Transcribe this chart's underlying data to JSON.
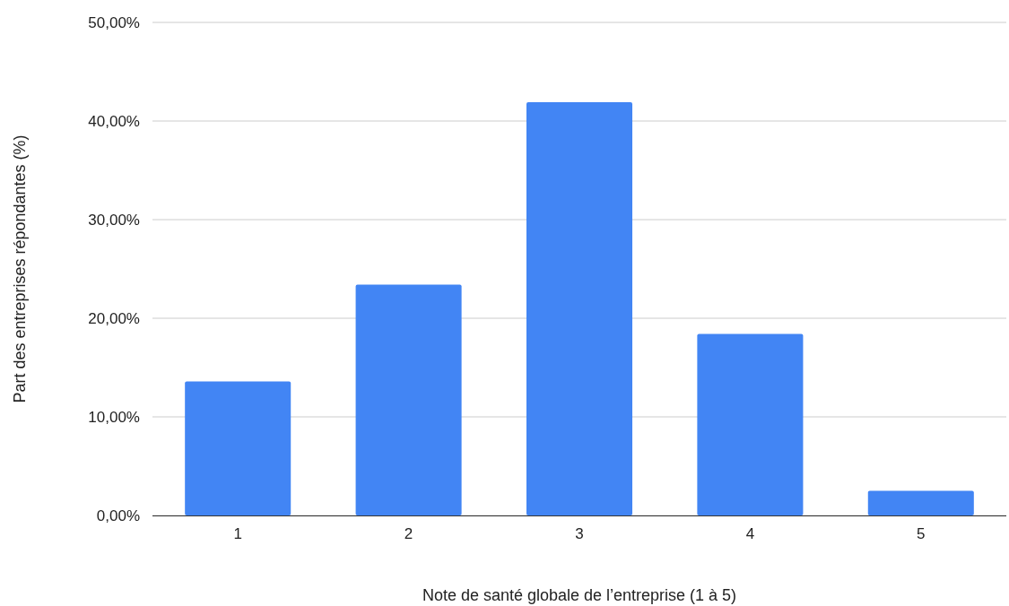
{
  "chart_data": {
    "type": "bar",
    "xlabel": "Note de santé globale de l’entreprise (1 à 5)",
    "ylabel": "Part des entreprises répondantes (%)",
    "categories": [
      "1",
      "2",
      "3",
      "4",
      "5"
    ],
    "values": [
      13.6,
      23.4,
      41.9,
      18.4,
      2.5
    ],
    "color": "#4285f4",
    "ylim": [
      0,
      50
    ],
    "yticks": [
      {
        "value": 0,
        "label": "0,00%"
      },
      {
        "value": 10,
        "label": "10,00%"
      },
      {
        "value": 20,
        "label": "20,00%"
      },
      {
        "value": 30,
        "label": "30,00%"
      },
      {
        "value": 40,
        "label": "40,00%"
      },
      {
        "value": 50,
        "label": "50,00%"
      }
    ],
    "grid": "y"
  }
}
